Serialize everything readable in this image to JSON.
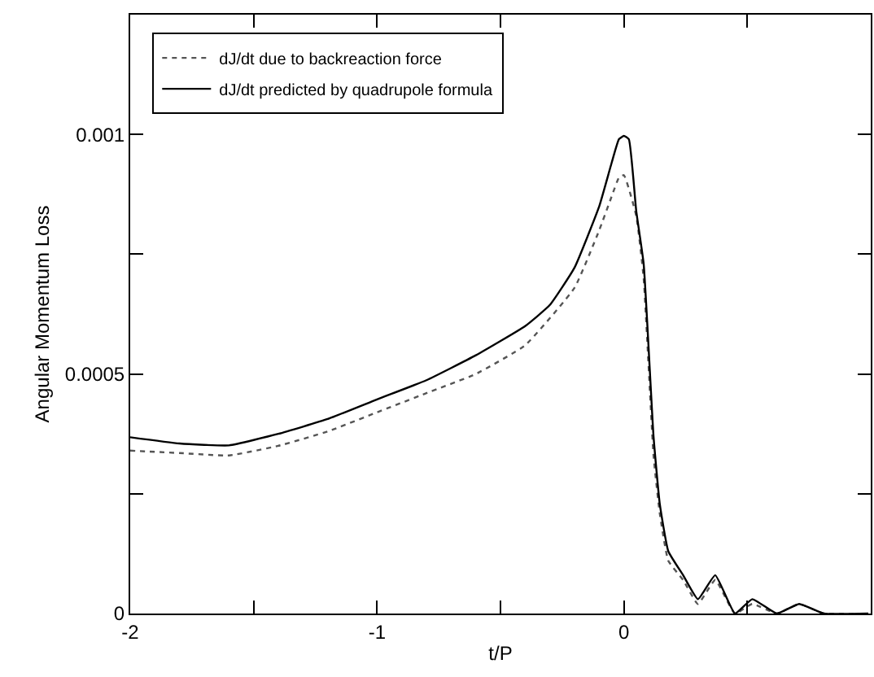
{
  "chart_data": {
    "type": "line",
    "xlabel": "t/P",
    "ylabel": "Angular Momentum Loss",
    "xlim": [
      -2,
      1
    ],
    "xticks": [
      -2,
      {
        "value": -1.5,
        "label": null
      },
      -1,
      {
        "value": -0.5,
        "label": null
      },
      0,
      {
        "value": 0.5,
        "label": null
      }
    ],
    "ylim": [
      0,
      0.00125
    ],
    "yticks": [
      0,
      {
        "value": 0.00025,
        "label": null
      },
      0.0005,
      {
        "value": 0.00075,
        "label": null
      },
      0.001
    ],
    "legend": "top left",
    "marker": "none",
    "series": [
      {
        "name": "dJ/dt due to backreaction force",
        "color": "#555555",
        "line_style": "dotted",
        "x": [
          -2,
          -1.8,
          -1.6,
          -1.4,
          -1.2,
          -1,
          -0.8,
          -0.6,
          -0.4,
          -0.2,
          -0.1,
          -0.05,
          -0.02,
          0,
          0.05,
          0.08,
          0.12,
          0.145,
          0.18,
          0.24,
          0.3,
          0.37,
          0.45,
          0.52,
          0.62,
          0.71,
          0.81,
          0.99
        ],
        "values": [
          0.00034,
          0.000335,
          0.00033,
          0.00035,
          0.00038,
          0.00042,
          0.00046,
          0.0005,
          0.00056,
          0.00068,
          0.0008,
          0.00087,
          0.00091,
          0.000915,
          0.00083,
          0.0007,
          0.00033,
          0.00021,
          0.00011,
          7e-05,
          2e-05,
          7e-05,
          0,
          2e-05,
          0,
          2e-05,
          0,
          0
        ]
      },
      {
        "name": "dJ/dt predicted by quadrupole formula",
        "color": "#000000",
        "line_style": "solid",
        "x": [
          -2,
          -1.8,
          -1.6,
          -1.4,
          -1.2,
          -1,
          -0.8,
          -0.6,
          -0.4,
          -0.3,
          -0.2,
          -0.1,
          -0.05,
          -0.02,
          0,
          0.02,
          0.05,
          0.08,
          0.12,
          0.145,
          0.18,
          0.24,
          0.3,
          0.37,
          0.45,
          0.52,
          0.62,
          0.71,
          0.81,
          0.99
        ],
        "values": [
          0.000368,
          0.000355,
          0.000351,
          0.000375,
          0.000406,
          0.000447,
          0.000487,
          0.000539,
          0.0006,
          0.000644,
          0.000722,
          0.00085,
          0.00094,
          0.00099,
          0.000997,
          0.00099,
          0.00084,
          0.00073,
          0.00037,
          0.00023,
          0.00013,
          8e-05,
          3e-05,
          8e-05,
          0,
          3e-05,
          0,
          2e-05,
          0,
          0
        ]
      }
    ]
  }
}
